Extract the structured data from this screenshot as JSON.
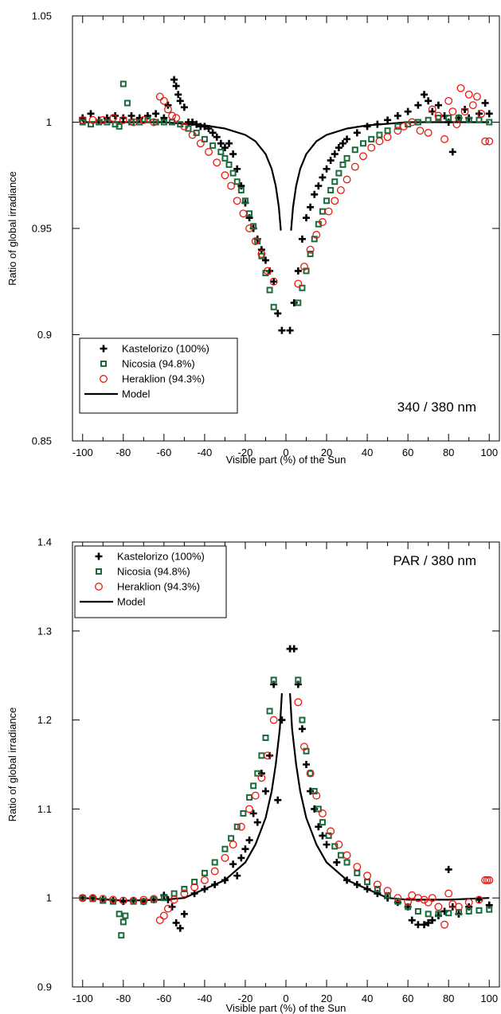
{
  "chart_data": [
    {
      "type": "scatter",
      "panel_label": "340 / 380 nm",
      "xlabel": "Visible part (%) of the Sun",
      "ylabel": "Ratio of global irradiance",
      "xlim": [
        -105,
        105
      ],
      "ylim": [
        0.85,
        1.05
      ],
      "xticks": [
        -100,
        -80,
        -60,
        -40,
        -20,
        0,
        20,
        40,
        60,
        80,
        100
      ],
      "yticks": [
        0.85,
        0.9,
        0.95,
        1,
        1.05
      ],
      "ytick_labels": [
        "0.85",
        "0.9",
        "0.95",
        "1",
        "1.05"
      ],
      "legend_position": "bottom-left",
      "series": [
        {
          "name": "Kastelorizo (100%)",
          "marker": "cross",
          "color": "#000000",
          "x": [
            -100,
            -96,
            -92,
            -88,
            -84,
            -80,
            -76,
            -72,
            -68,
            -64,
            -60,
            -58,
            -55,
            -54,
            -53,
            -52,
            -50,
            -48,
            -46,
            -44,
            -42,
            -40,
            -38,
            -36,
            -34,
            -32,
            -30,
            -28,
            -26,
            -24,
            -22,
            -20,
            -18,
            -16,
            -14,
            -12,
            -10,
            -8,
            -6,
            -4,
            -2,
            2,
            4,
            6,
            8,
            10,
            12,
            14,
            16,
            18,
            20,
            22,
            24,
            26,
            28,
            30,
            35,
            40,
            45,
            50,
            55,
            60,
            65,
            68,
            70,
            72,
            75,
            78,
            80,
            82,
            85,
            88,
            90,
            95,
            98,
            100
          ],
          "y": [
            1.002,
            1.004,
            1.001,
            1.002,
            1.003,
            1.002,
            1.003,
            1.002,
            1.003,
            1.004,
            1.002,
            1.008,
            1.02,
            1.017,
            1.013,
            1.01,
            1.007,
            1.0,
            1.0,
            0.999,
            0.998,
            0.998,
            0.997,
            0.995,
            0.993,
            0.99,
            0.988,
            0.99,
            0.985,
            0.978,
            0.97,
            0.962,
            0.955,
            0.95,
            0.945,
            0.94,
            0.935,
            0.93,
            0.925,
            0.91,
            0.902,
            0.902,
            0.915,
            0.93,
            0.945,
            0.955,
            0.96,
            0.966,
            0.97,
            0.974,
            0.978,
            0.982,
            0.985,
            0.988,
            0.99,
            0.992,
            0.995,
            0.998,
            0.999,
            1.001,
            1.003,
            1.005,
            1.008,
            1.013,
            1.01,
            1.005,
            1.008,
            1.003,
            1.0,
            0.986,
            1.002,
            1.006,
            1.002,
            1.004,
            1.009,
            1.004
          ]
        },
        {
          "name": "Nicosia (94.8%)",
          "marker": "square",
          "color": "#1a6b3c",
          "x": [
            -100,
            -96,
            -92,
            -88,
            -84,
            -82,
            -80,
            -78,
            -76,
            -72,
            -68,
            -64,
            -60,
            -56,
            -52,
            -48,
            -44,
            -40,
            -36,
            -32,
            -30,
            -28,
            -26,
            -24,
            -22,
            -20,
            -18,
            -16,
            -14,
            -12,
            -10,
            -8,
            -6,
            6,
            8,
            10,
            12,
            14,
            16,
            18,
            20,
            22,
            24,
            26,
            28,
            30,
            34,
            38,
            42,
            46,
            50,
            55,
            60,
            65,
            70,
            75,
            80,
            85,
            90,
            95,
            100
          ],
          "y": [
            1.0,
            0.999,
            1.0,
            1.0,
            0.999,
            0.998,
            1.018,
            1.009,
            1.0,
            1.0,
            1.001,
            1.0,
            1.0,
            1.0,
            0.999,
            0.997,
            0.995,
            0.992,
            0.989,
            0.986,
            0.983,
            0.98,
            0.976,
            0.972,
            0.968,
            0.963,
            0.957,
            0.951,
            0.944,
            0.937,
            0.929,
            0.921,
            0.913,
            0.915,
            0.922,
            0.93,
            0.938,
            0.945,
            0.952,
            0.958,
            0.963,
            0.968,
            0.972,
            0.976,
            0.98,
            0.983,
            0.987,
            0.99,
            0.992,
            0.994,
            0.996,
            0.998,
            0.999,
            1.0,
            1.001,
            1.002,
            1.002,
            1.002,
            1.001,
            1.001,
            1.0
          ]
        },
        {
          "name": "Heraklion (94.3%)",
          "marker": "circle",
          "color": "#e8190f",
          "x": [
            -100,
            -95,
            -90,
            -85,
            -80,
            -75,
            -70,
            -65,
            -62,
            -60,
            -58,
            -56,
            -54,
            -50,
            -46,
            -42,
            -38,
            -34,
            -30,
            -27,
            -24,
            -21,
            -18,
            -15,
            -12,
            -9,
            -6,
            6,
            9,
            12,
            15,
            18,
            21,
            24,
            27,
            30,
            34,
            38,
            42,
            46,
            50,
            55,
            58,
            62,
            66,
            70,
            72,
            75,
            78,
            80,
            82,
            84,
            86,
            88,
            90,
            92,
            94,
            96,
            98,
            100
          ],
          "y": [
            1.001,
            1.001,
            1.001,
            1.002,
            1.001,
            1.0,
            1.001,
            1.0,
            1.012,
            1.01,
            1.006,
            1.003,
            1.002,
            0.998,
            0.994,
            0.99,
            0.986,
            0.981,
            0.975,
            0.97,
            0.963,
            0.957,
            0.95,
            0.944,
            0.938,
            0.93,
            0.925,
            0.924,
            0.932,
            0.94,
            0.947,
            0.953,
            0.958,
            0.963,
            0.968,
            0.973,
            0.979,
            0.984,
            0.988,
            0.991,
            0.993,
            0.996,
            0.998,
            1.0,
            0.996,
            0.995,
            1.006,
            1.003,
            0.992,
            1.01,
            1.005,
            0.999,
            1.016,
            1.005,
            1.013,
            1.008,
            1.012,
            1.004,
            0.991,
            0.991
          ]
        }
      ],
      "model": {
        "name": "Model",
        "color": "#000000",
        "left": {
          "x": [
            -100,
            -80,
            -60,
            -40,
            -30,
            -20,
            -15,
            -10,
            -7,
            -5,
            -3.5,
            -2.5
          ],
          "y": [
            1.0,
            1.0,
            1.0,
            0.9985,
            0.997,
            0.994,
            0.991,
            0.985,
            0.978,
            0.97,
            0.96,
            0.949
          ]
        },
        "right": {
          "x": [
            2.5,
            3.5,
            5,
            7,
            10,
            15,
            20,
            30,
            40,
            60,
            80,
            100
          ],
          "y": [
            0.949,
            0.96,
            0.97,
            0.978,
            0.985,
            0.991,
            0.994,
            0.997,
            0.9985,
            1.0,
            1.0,
            1.0
          ]
        }
      }
    },
    {
      "type": "scatter",
      "panel_label": "PAR / 380 nm",
      "xlabel": "Visible part (%) of the Sun",
      "ylabel": "Ratio of global irradiance",
      "xlim": [
        -105,
        105
      ],
      "ylim": [
        0.9,
        1.4
      ],
      "xticks": [
        -100,
        -80,
        -60,
        -40,
        -20,
        0,
        20,
        40,
        60,
        80,
        100
      ],
      "yticks": [
        0.9,
        1,
        1.1,
        1.2,
        1.3,
        1.4
      ],
      "ytick_labels": [
        "0.9",
        "1",
        "1.1",
        "1.2",
        "1.3",
        "1.4"
      ],
      "legend_position": "top-left",
      "series": [
        {
          "name": "Kastelorizo (100%)",
          "marker": "cross",
          "color": "#000000",
          "x": [
            -100,
            -95,
            -90,
            -85,
            -80,
            -75,
            -70,
            -65,
            -60,
            -58,
            -56,
            -54,
            -52,
            -50,
            -45,
            -40,
            -35,
            -30,
            -26,
            -24,
            -22,
            -20,
            -18,
            -16,
            -14,
            -12,
            -10,
            -8,
            -6,
            -4,
            -2,
            2,
            4,
            6,
            8,
            10,
            12,
            14,
            16,
            18,
            20,
            25,
            30,
            35,
            40,
            45,
            50,
            55,
            60,
            62,
            65,
            68,
            70,
            72,
            75,
            78,
            80,
            82,
            85,
            90,
            95,
            100
          ],
          "y": [
            1.0,
            1.0,
            0.998,
            0.997,
            0.996,
            0.997,
            0.996,
            0.998,
            1.003,
            0.998,
            0.99,
            0.972,
            0.966,
            0.982,
            1.005,
            1.01,
            1.015,
            1.02,
            1.038,
            1.025,
            1.045,
            1.055,
            1.065,
            1.095,
            1.085,
            1.14,
            1.12,
            1.16,
            1.24,
            1.11,
            1.2,
            1.28,
            1.28,
            1.24,
            1.19,
            1.15,
            1.12,
            1.1,
            1.08,
            1.07,
            1.06,
            1.04,
            1.02,
            1.015,
            1.01,
            1.005,
            1.0,
            0.995,
            0.99,
            0.975,
            0.97,
            0.97,
            0.972,
            0.975,
            0.98,
            0.985,
            1.032,
            0.99,
            0.982,
            0.99,
            0.998,
            0.992
          ]
        },
        {
          "name": "Nicosia (94.8%)",
          "marker": "square",
          "color": "#1a6b3c",
          "x": [
            -100,
            -95,
            -90,
            -85,
            -82,
            -81,
            -80,
            -79,
            -75,
            -70,
            -65,
            -60,
            -55,
            -50,
            -45,
            -40,
            -35,
            -30,
            -27,
            -24,
            -21,
            -18,
            -16,
            -14,
            -12,
            -10,
            -8,
            -6,
            6,
            8,
            10,
            12,
            14,
            16,
            18,
            21,
            24,
            27,
            30,
            35,
            40,
            45,
            50,
            55,
            60,
            65,
            70,
            75,
            80,
            85,
            90,
            95,
            100
          ],
          "y": [
            1.0,
            0.999,
            0.997,
            0.996,
            0.982,
            0.958,
            0.973,
            0.98,
            0.996,
            0.996,
            0.998,
            1.0,
            1.005,
            1.01,
            1.018,
            1.028,
            1.04,
            1.055,
            1.067,
            1.08,
            1.095,
            1.113,
            1.126,
            1.14,
            1.16,
            1.18,
            1.21,
            1.245,
            1.245,
            1.2,
            1.165,
            1.14,
            1.12,
            1.1,
            1.085,
            1.07,
            1.058,
            1.048,
            1.04,
            1.028,
            1.018,
            1.01,
            1.003,
            0.996,
            0.99,
            0.985,
            0.982,
            0.982,
            0.983,
            0.984,
            0.985,
            0.986,
            0.987
          ]
        },
        {
          "name": "Heraklion (94.3%)",
          "marker": "circle",
          "color": "#e8190f",
          "x": [
            -100,
            -95,
            -90,
            -85,
            -80,
            -75,
            -70,
            -65,
            -62,
            -60,
            -58,
            -55,
            -50,
            -45,
            -40,
            -35,
            -30,
            -26,
            -22,
            -18,
            -15,
            -12,
            -9,
            -6,
            6,
            9,
            12,
            15,
            18,
            22,
            26,
            30,
            35,
            40,
            45,
            50,
            55,
            60,
            62,
            65,
            68,
            70,
            72,
            75,
            78,
            80,
            82,
            85,
            90,
            95,
            98,
            99,
            100
          ],
          "y": [
            1.0,
            1.0,
            0.999,
            0.998,
            0.997,
            0.997,
            0.998,
            0.999,
            0.975,
            0.98,
            0.988,
            0.998,
            1.005,
            1.012,
            1.02,
            1.03,
            1.045,
            1.06,
            1.08,
            1.1,
            1.115,
            1.135,
            1.16,
            1.2,
            1.22,
            1.17,
            1.14,
            1.115,
            1.095,
            1.075,
            1.06,
            1.048,
            1.035,
            1.025,
            1.015,
            1.008,
            1.0,
            0.996,
            1.003,
            1.0,
            0.998,
            0.995,
            1.0,
            0.99,
            0.97,
            1.005,
            0.993,
            0.99,
            0.995,
            0.998,
            1.02,
            1.02,
            1.02
          ]
        }
      ],
      "model": {
        "name": "Model",
        "color": "#000000",
        "left": {
          "x": [
            -100,
            -80,
            -60,
            -50,
            -40,
            -30,
            -20,
            -15,
            -10,
            -7,
            -5,
            -3,
            -2
          ],
          "y": [
            1.0,
            0.997,
            0.998,
            1.0,
            1.01,
            1.02,
            1.04,
            1.06,
            1.09,
            1.12,
            1.15,
            1.19,
            1.23
          ]
        },
        "right": {
          "x": [
            2,
            3,
            5,
            7,
            10,
            15,
            20,
            30,
            40,
            50,
            60,
            80,
            100
          ],
          "y": [
            1.23,
            1.19,
            1.15,
            1.12,
            1.09,
            1.06,
            1.04,
            1.02,
            1.01,
            1.0,
            0.998,
            0.998,
            1.0
          ]
        }
      }
    }
  ]
}
